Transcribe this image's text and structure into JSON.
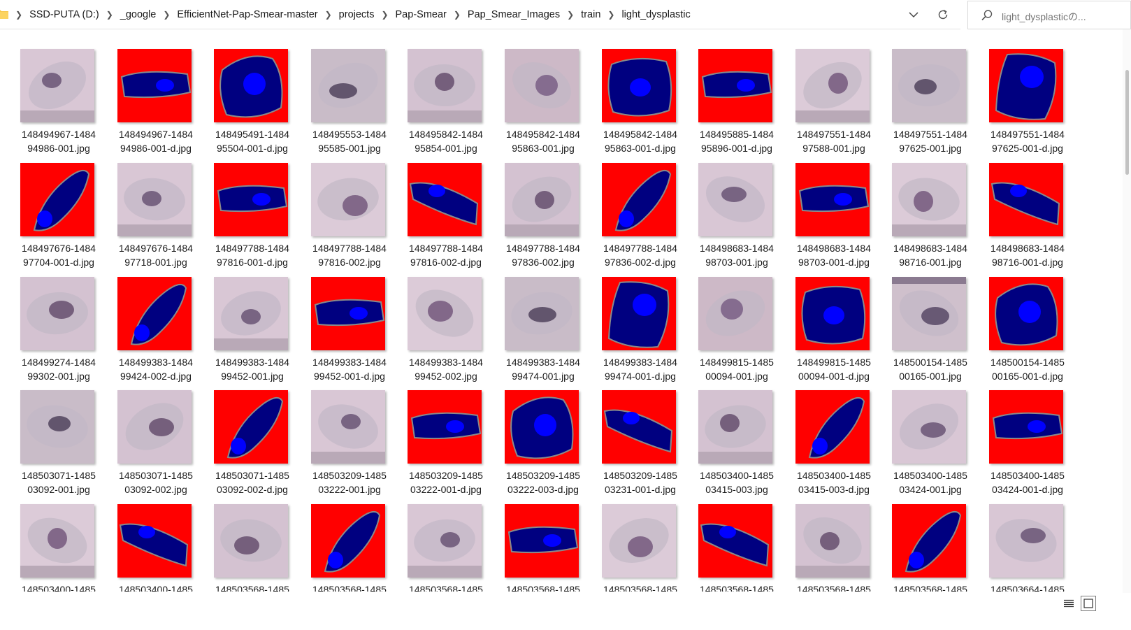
{
  "address": {
    "crumbs": [
      "SSD-PUTA (D:)",
      "_google",
      "EfficientNet-Pap-Smear-master",
      "projects",
      "Pap-Smear",
      "Pap_Smear_Images",
      "train",
      "light_dysplastic"
    ]
  },
  "search": {
    "placeholder": "light_dysplasticの..."
  },
  "colors": {
    "mask_bg": "#ff0000",
    "cytoplasm": "#000080",
    "nucleus": "#0000ff",
    "cell_bg": "#d8c8d6"
  },
  "files": [
    {
      "line1": "148494967-1484",
      "line2": "94986-001.jpg",
      "kind": "cell"
    },
    {
      "line1": "148494967-1484",
      "line2": "94986-001-d.jpg",
      "kind": "mask"
    },
    {
      "line1": "148495491-1484",
      "line2": "95504-001-d.jpg",
      "kind": "mask"
    },
    {
      "line1": "148495553-1484",
      "line2": "95585-001.jpg",
      "kind": "cell"
    },
    {
      "line1": "148495842-1484",
      "line2": "95854-001.jpg",
      "kind": "cell"
    },
    {
      "line1": "148495842-1484",
      "line2": "95863-001.jpg",
      "kind": "cell"
    },
    {
      "line1": "148495842-1484",
      "line2": "95863-001-d.jpg",
      "kind": "mask"
    },
    {
      "line1": "148495885-1484",
      "line2": "95896-001-d.jpg",
      "kind": "mask"
    },
    {
      "line1": "148497551-1484",
      "line2": "97588-001.jpg",
      "kind": "cell"
    },
    {
      "line1": "148497551-1484",
      "line2": "97625-001.jpg",
      "kind": "cell"
    },
    {
      "line1": "148497551-1484",
      "line2": "97625-001-d.jpg",
      "kind": "mask"
    },
    {
      "line1": "148497676-1484",
      "line2": "97704-001-d.jpg",
      "kind": "mask"
    },
    {
      "line1": "148497676-1484",
      "line2": "97718-001.jpg",
      "kind": "cell"
    },
    {
      "line1": "148497788-1484",
      "line2": "97816-001-d.jpg",
      "kind": "mask"
    },
    {
      "line1": "148497788-1484",
      "line2": "97816-002.jpg",
      "kind": "cell"
    },
    {
      "line1": "148497788-1484",
      "line2": "97816-002-d.jpg",
      "kind": "mask"
    },
    {
      "line1": "148497788-1484",
      "line2": "97836-002.jpg",
      "kind": "cell"
    },
    {
      "line1": "148497788-1484",
      "line2": "97836-002-d.jpg",
      "kind": "mask"
    },
    {
      "line1": "148498683-1484",
      "line2": "98703-001.jpg",
      "kind": "cell"
    },
    {
      "line1": "148498683-1484",
      "line2": "98703-001-d.jpg",
      "kind": "mask"
    },
    {
      "line1": "148498683-1484",
      "line2": "98716-001.jpg",
      "kind": "cell"
    },
    {
      "line1": "148498683-1484",
      "line2": "98716-001-d.jpg",
      "kind": "mask"
    },
    {
      "line1": "148499274-1484",
      "line2": "99302-001.jpg",
      "kind": "cell"
    },
    {
      "line1": "148499383-1484",
      "line2": "99424-002-d.jpg",
      "kind": "mask"
    },
    {
      "line1": "148499383-1484",
      "line2": "99452-001.jpg",
      "kind": "cell"
    },
    {
      "line1": "148499383-1484",
      "line2": "99452-001-d.jpg",
      "kind": "mask"
    },
    {
      "line1": "148499383-1484",
      "line2": "99452-002.jpg",
      "kind": "cell"
    },
    {
      "line1": "148499383-1484",
      "line2": "99474-001.jpg",
      "kind": "cell"
    },
    {
      "line1": "148499383-1484",
      "line2": "99474-001-d.jpg",
      "kind": "mask"
    },
    {
      "line1": "148499815-1485",
      "line2": "00094-001.jpg",
      "kind": "cell"
    },
    {
      "line1": "148499815-1485",
      "line2": "00094-001-d.jpg",
      "kind": "mask"
    },
    {
      "line1": "148500154-1485",
      "line2": "00165-001.jpg",
      "kind": "cell"
    },
    {
      "line1": "148500154-1485",
      "line2": "00165-001-d.jpg",
      "kind": "mask"
    },
    {
      "line1": "148503071-1485",
      "line2": "03092-001.jpg",
      "kind": "cell"
    },
    {
      "line1": "148503071-1485",
      "line2": "03092-002.jpg",
      "kind": "cell"
    },
    {
      "line1": "148503071-1485",
      "line2": "03092-002-d.jpg",
      "kind": "mask"
    },
    {
      "line1": "148503209-1485",
      "line2": "03222-001.jpg",
      "kind": "cell"
    },
    {
      "line1": "148503209-1485",
      "line2": "03222-001-d.jpg",
      "kind": "mask"
    },
    {
      "line1": "148503209-1485",
      "line2": "03222-003-d.jpg",
      "kind": "mask"
    },
    {
      "line1": "148503209-1485",
      "line2": "03231-001-d.jpg",
      "kind": "mask"
    },
    {
      "line1": "148503400-1485",
      "line2": "03415-003.jpg",
      "kind": "cell"
    },
    {
      "line1": "148503400-1485",
      "line2": "03415-003-d.jpg",
      "kind": "mask"
    },
    {
      "line1": "148503400-1485",
      "line2": "03424-001.jpg",
      "kind": "cell"
    },
    {
      "line1": "148503400-1485",
      "line2": "03424-001-d.jpg",
      "kind": "mask"
    },
    {
      "line1": "148503400-1485",
      "line2": "",
      "kind": "cell"
    },
    {
      "line1": "148503400-1485",
      "line2": "",
      "kind": "mask"
    },
    {
      "line1": "148503568-1485",
      "line2": "",
      "kind": "cell"
    },
    {
      "line1": "148503568-1485",
      "line2": "",
      "kind": "mask"
    },
    {
      "line1": "148503568-1485",
      "line2": "",
      "kind": "cell"
    },
    {
      "line1": "148503568-1485",
      "line2": "",
      "kind": "mask"
    },
    {
      "line1": "148503568-1485",
      "line2": "",
      "kind": "cell"
    },
    {
      "line1": "148503568-1485",
      "line2": "",
      "kind": "mask"
    },
    {
      "line1": "148503568-1485",
      "line2": "",
      "kind": "cell"
    },
    {
      "line1": "148503568-1485",
      "line2": "",
      "kind": "mask"
    },
    {
      "line1": "148503664-1485",
      "line2": "",
      "kind": "cell"
    }
  ]
}
